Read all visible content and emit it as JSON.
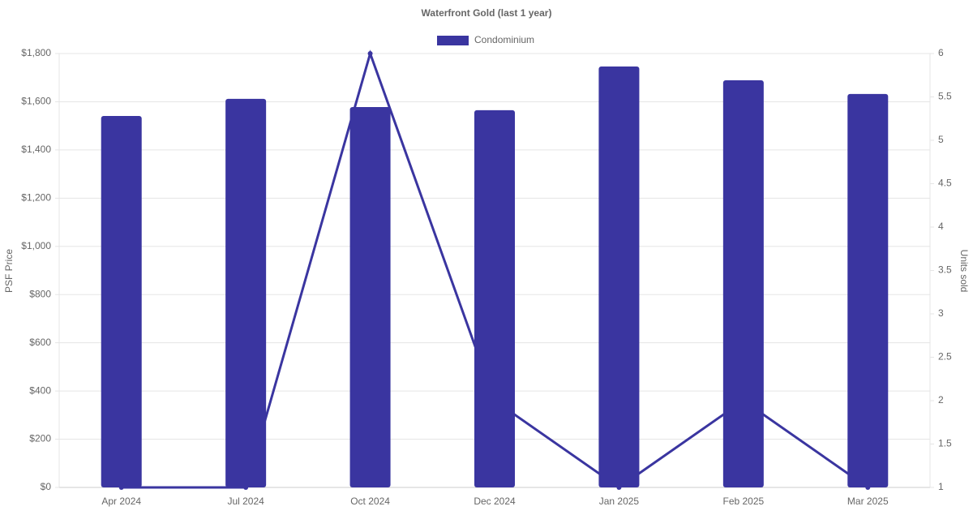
{
  "chart_data": {
    "type": "bar",
    "title": "Waterfront Gold (last 1 year)",
    "categories": [
      "Apr 2024",
      "Jul 2024",
      "Oct 2024",
      "Dec 2024",
      "Jan 2025",
      "Feb 2025",
      "Mar 2025"
    ],
    "series": [
      {
        "name": "Condominium",
        "color": "#3a35a0",
        "values": [
          1541,
          1612,
          1578,
          1565,
          1746,
          1689,
          1632
        ]
      },
      {
        "type": "line",
        "axis": "y2",
        "color": "#3a35a0",
        "values": [
          1,
          1,
          6,
          2,
          1,
          2,
          1
        ]
      }
    ],
    "ylabel": "PSF Price",
    "y2label": "Units sold",
    "ylim": [
      0,
      1800
    ],
    "yticks": [
      {
        "value": 0,
        "label": "$0"
      },
      {
        "value": 200,
        "label": "$200"
      },
      {
        "value": 400,
        "label": "$400"
      },
      {
        "value": 600,
        "label": "$600"
      },
      {
        "value": 800,
        "label": "$800"
      },
      {
        "value": 1000,
        "label": "$1,000"
      },
      {
        "value": 1200,
        "label": "$1,200"
      },
      {
        "value": 1400,
        "label": "$1,400"
      },
      {
        "value": 1600,
        "label": "$1,600"
      },
      {
        "value": 1800,
        "label": "$1,800"
      }
    ],
    "y2lim": [
      1,
      6
    ],
    "y2ticks": [
      1,
      1.5,
      2,
      2.5,
      3,
      3.5,
      4,
      4.5,
      5,
      5.5,
      6
    ],
    "grid": true,
    "legend": "top"
  }
}
